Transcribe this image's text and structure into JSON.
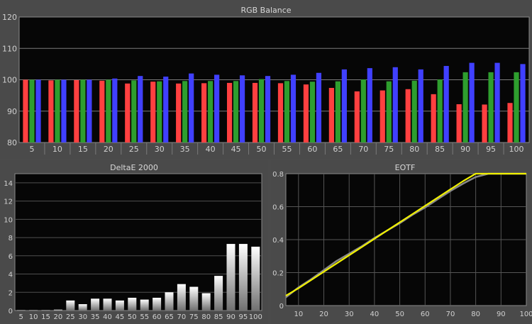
{
  "chart_data": [
    {
      "id": "rgb",
      "type": "bar",
      "title": "RGB Balance",
      "categories": [
        "5",
        "10",
        "15",
        "20",
        "25",
        "30",
        "35",
        "40",
        "45",
        "50",
        "55",
        "60",
        "65",
        "70",
        "75",
        "80",
        "85",
        "90",
        "95",
        "100"
      ],
      "ylim": [
        80,
        120
      ],
      "yticks": [
        80,
        90,
        100,
        110,
        120
      ],
      "grid": true,
      "colors": {
        "red": "#ff4040",
        "green": "#2e9e2e",
        "blue": "#4040ff"
      },
      "series": [
        {
          "color": "red",
          "values": [
            100,
            99.8,
            99.9,
            99.7,
            98.8,
            99.4,
            98.8,
            98.9,
            99.0,
            99.0,
            98.9,
            98.5,
            97.4,
            96.3,
            96.6,
            97.0,
            95.4,
            92.2,
            92.1,
            92.6
          ]
        },
        {
          "color": "green",
          "values": [
            100,
            100,
            100,
            100,
            99.8,
            99.5,
            99.6,
            99.6,
            99.6,
            100.2,
            99.6,
            99.4,
            99.5,
            100.1,
            99.5,
            99.7,
            100.1,
            102.4,
            102.4,
            102.4
          ]
        },
        {
          "color": "blue",
          "values": [
            100,
            100,
            100,
            100.4,
            101.2,
            101.0,
            102.0,
            101.6,
            101.4,
            101.2,
            101.6,
            102.2,
            103.3,
            103.7,
            104.0,
            103.3,
            104.4,
            105.4,
            105.4,
            105.0
          ]
        }
      ]
    },
    {
      "id": "deltae",
      "type": "bar",
      "title": "DeltaE 2000",
      "categories": [
        "5",
        "10",
        "15",
        "20",
        "25",
        "30",
        "35",
        "40",
        "45",
        "50",
        "55",
        "60",
        "65",
        "70",
        "75",
        "80",
        "85",
        "90",
        "95",
        "100"
      ],
      "values": [
        0.05,
        0.05,
        0.05,
        0.1,
        1.1,
        0.7,
        1.3,
        1.3,
        1.1,
        1.4,
        1.2,
        1.4,
        2.0,
        2.9,
        2.6,
        1.9,
        3.8,
        7.3,
        7.3,
        7.0
      ],
      "ylim": [
        0,
        15
      ],
      "yticks": [
        0,
        2,
        4,
        6,
        8,
        10,
        12,
        14
      ],
      "grid": true
    },
    {
      "id": "eotf",
      "type": "line",
      "title": "EOTF",
      "xlim": [
        5,
        100
      ],
      "ylim": [
        0,
        0.8
      ],
      "xticks": [
        10,
        20,
        30,
        40,
        50,
        60,
        70,
        80,
        90,
        100
      ],
      "yticks": [
        0,
        0.2,
        0.4,
        0.6,
        0.8
      ],
      "grid": true,
      "series": [
        {
          "color": "#888888",
          "points": [
            [
              5,
              0.05
            ],
            [
              10,
              0.11
            ],
            [
              15,
              0.16
            ],
            [
              20,
              0.215
            ],
            [
              25,
              0.27
            ],
            [
              30,
              0.315
            ],
            [
              35,
              0.36
            ],
            [
              40,
              0.41
            ],
            [
              45,
              0.455
            ],
            [
              50,
              0.5
            ],
            [
              55,
              0.55
            ],
            [
              60,
              0.595
            ],
            [
              65,
              0.645
            ],
            [
              70,
              0.695
            ],
            [
              75,
              0.74
            ],
            [
              80,
              0.78
            ],
            [
              85,
              0.8
            ],
            [
              90,
              0.8
            ],
            [
              95,
              0.8
            ],
            [
              100,
              0.8
            ]
          ]
        },
        {
          "color": "#f0f000",
          "points": [
            [
              5,
              0.06
            ],
            [
              10,
              0.105
            ],
            [
              15,
              0.155
            ],
            [
              20,
              0.205
            ],
            [
              25,
              0.255
            ],
            [
              30,
              0.305
            ],
            [
              35,
              0.355
            ],
            [
              40,
              0.405
            ],
            [
              45,
              0.455
            ],
            [
              50,
              0.505
            ],
            [
              55,
              0.555
            ],
            [
              60,
              0.605
            ],
            [
              65,
              0.655
            ],
            [
              70,
              0.705
            ],
            [
              75,
              0.755
            ],
            [
              80,
              0.8
            ],
            [
              85,
              0.8
            ],
            [
              90,
              0.8
            ],
            [
              95,
              0.8
            ],
            [
              100,
              0.8
            ]
          ]
        }
      ]
    }
  ]
}
